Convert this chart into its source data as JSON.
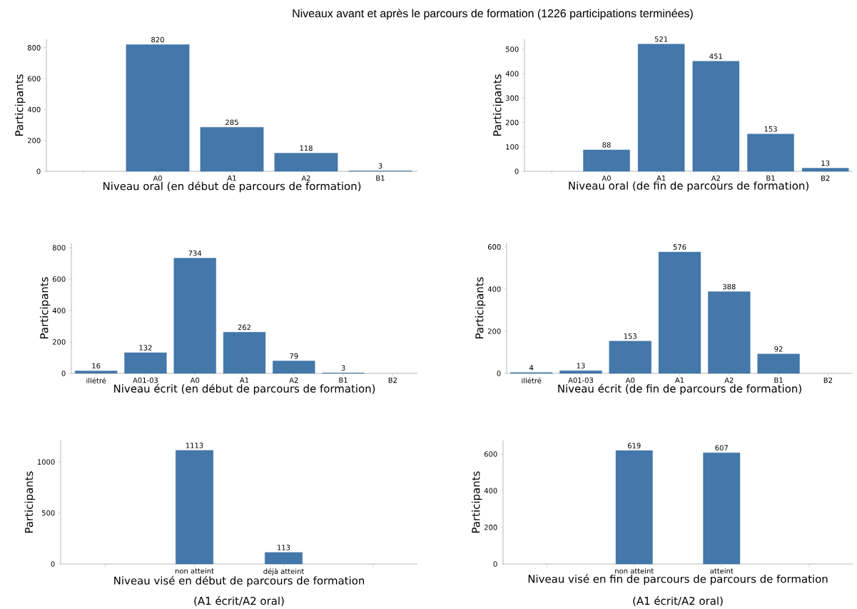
{
  "chart_data": [
    {
      "type": "bar",
      "title": "Niveaux avant et après le parcours de formation (1226 participations terminées)",
      "xlabel": "Niveau oral (en début de parcours de formation)",
      "ylabel": "Participants",
      "categories": [
        null,
        "A0",
        "A1",
        "A2",
        "B1"
      ],
      "values": [
        null,
        820,
        285,
        118,
        3
      ],
      "color": "#4477aa",
      "ylim": [
        0,
        855
      ],
      "yticks": [
        0,
        200,
        400,
        600,
        800
      ],
      "data_labels": true
    },
    {
      "type": "bar",
      "xlabel": "Niveau oral (de fin de parcours de formation)",
      "ylabel": "Participants",
      "categories": [
        null,
        "A0",
        "A1",
        "A2",
        "B1",
        "B2"
      ],
      "values": [
        null,
        88,
        521,
        451,
        153,
        13
      ],
      "color": "#4477aa",
      "ylim": [
        0,
        541
      ],
      "yticks": [
        0,
        100,
        200,
        300,
        400,
        500
      ],
      "data_labels": true
    },
    {
      "type": "bar",
      "xlabel": "Niveau écrit (en début de parcours de formation)",
      "ylabel": "Participants",
      "categories": [
        "illétré",
        "A01-03",
        "A0",
        "A1",
        "A2",
        "B1",
        "B2"
      ],
      "values": [
        16,
        132,
        734,
        262,
        79,
        3,
        null
      ],
      "color": "#4477aa",
      "ylim": [
        0,
        832
      ],
      "yticks": [
        0,
        200,
        400,
        600,
        800
      ],
      "data_labels": true
    },
    {
      "type": "bar",
      "xlabel": "Niveau écrit (de fin de parcours de formation)",
      "ylabel": "Participants",
      "categories": [
        "illétré",
        "A01-03",
        "A0",
        "A1",
        "A2",
        "B1",
        "B2"
      ],
      "values": [
        4,
        13,
        153,
        576,
        388,
        92,
        null
      ],
      "color": "#4477aa",
      "ylim": [
        0,
        620
      ],
      "yticks": [
        0,
        200,
        400,
        600
      ],
      "data_labels": true
    },
    {
      "type": "bar",
      "xlabel": "Niveau visé en début de parcours de formation",
      "ylabel": "Participants",
      "annotations": [
        "(A1 écrit/A2 oral)"
      ],
      "categories": [
        null,
        "non atteint",
        "déjà atteint",
        null
      ],
      "values": [
        null,
        1113,
        113,
        null
      ],
      "color": "#4477aa",
      "ylim": [
        0,
        1210
      ],
      "yticks": [
        0,
        500,
        1000
      ],
      "data_labels": true
    },
    {
      "type": "bar",
      "xlabel": "Niveau visé en fin de parcours de parcours de formation",
      "ylabel": "Participants",
      "annotations": [
        "(A1 écrit/A2 oral)"
      ],
      "categories": [
        null,
        "non atteint",
        "atteint",
        null
      ],
      "values": [
        null,
        619,
        607,
        null
      ],
      "color": "#4477aa",
      "ylim": [
        0,
        674
      ],
      "yticks": [
        0,
        200,
        400,
        600
      ],
      "data_labels": true
    }
  ]
}
